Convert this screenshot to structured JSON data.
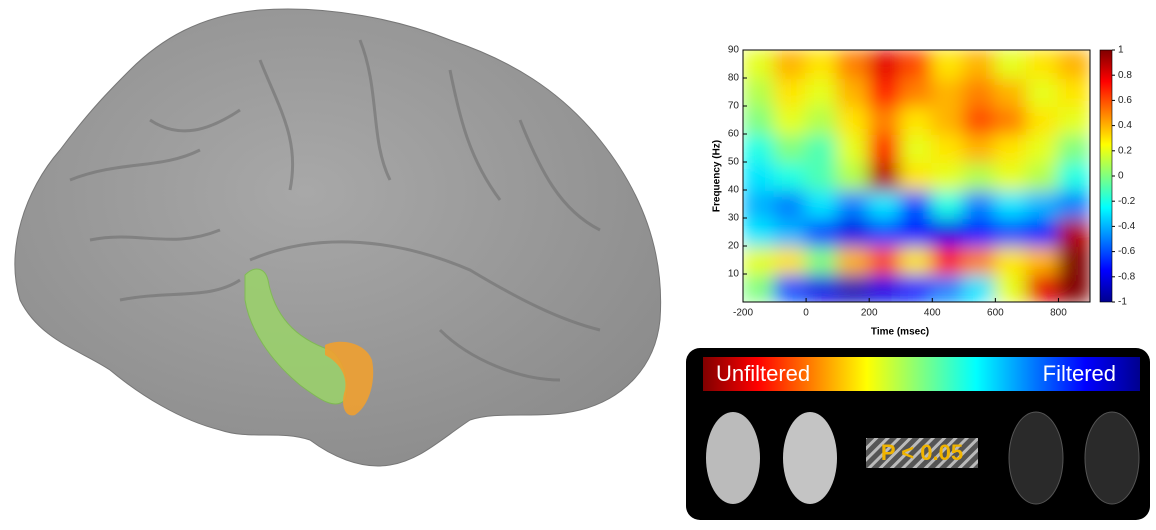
{
  "chart_data": {
    "type": "heatmap",
    "xlabel": "Time (msec)",
    "ylabel": "Frequency (Hz)",
    "xlim": [
      -200,
      900
    ],
    "ylim": [
      0,
      90
    ],
    "xticks": [
      -200,
      0,
      200,
      400,
      600,
      800
    ],
    "yticks": [
      10,
      20,
      30,
      40,
      50,
      60,
      70,
      80,
      90
    ],
    "clim": [
      -1,
      1
    ],
    "cticks": [
      -1,
      -0.8,
      -0.6,
      -0.4,
      -0.2,
      0,
      0.2,
      0.4,
      0.6,
      0.8,
      1
    ],
    "x": [
      -150,
      -50,
      50,
      150,
      250,
      350,
      450,
      550,
      650,
      750,
      850
    ],
    "y": [
      5,
      15,
      25,
      35,
      45,
      55,
      65,
      75,
      85
    ],
    "z": [
      [
        0,
        -0.6,
        -0.8,
        -0.9,
        -0.8,
        -0.7,
        -0.5,
        -0.3,
        0.2,
        0.8,
        1
      ],
      [
        0.2,
        0.3,
        0,
        0.4,
        0.6,
        0.3,
        0.7,
        0.5,
        0.3,
        0.4,
        1
      ],
      [
        -0.3,
        -0.4,
        -0.6,
        -0.8,
        -0.6,
        -0.7,
        -0.8,
        -0.7,
        -0.6,
        -0.7,
        0.9
      ],
      [
        -0.4,
        -0.5,
        -0.3,
        -0.5,
        -0.3,
        -0.6,
        -0.2,
        -0.5,
        -0.3,
        -0.4,
        -0.5
      ],
      [
        -0.3,
        -0.2,
        -0.1,
        0.1,
        0.9,
        0.3,
        0.2,
        0.1,
        0.2,
        0.1,
        -0.2
      ],
      [
        -0.2,
        0,
        -0.1,
        0.2,
        0.7,
        0.2,
        0.3,
        0.4,
        0.3,
        0.2,
        0
      ],
      [
        0,
        0.2,
        0.1,
        0.3,
        0.5,
        0.3,
        0.4,
        0.6,
        0.5,
        0.3,
        0.2
      ],
      [
        0.1,
        0.3,
        0.2,
        0.4,
        0.7,
        0.5,
        0.4,
        0.5,
        0.4,
        0.2,
        0.3
      ],
      [
        0.2,
        0.4,
        0.3,
        0.5,
        0.8,
        0.6,
        0.3,
        0.4,
        0.2,
        0.3,
        0.4
      ]
    ]
  },
  "legend_panel": {
    "left": "Unfiltered",
    "right": "Filtered",
    "significance": "P < 0.05"
  }
}
